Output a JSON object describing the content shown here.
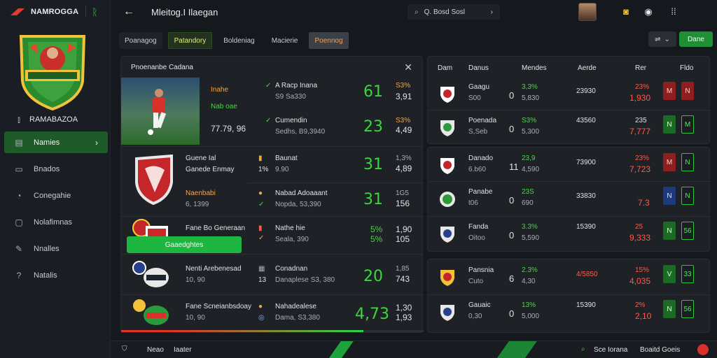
{
  "brand": {
    "name": "NAMROGGA",
    "icon": "leaf-icon"
  },
  "sidebar": {
    "club_name": "RAMABAZOA",
    "items": [
      {
        "label": "Namies",
        "icon": "list-icon",
        "active": true
      },
      {
        "label": "Bnados",
        "icon": "board-icon",
        "active": false
      },
      {
        "label": "Conegahie",
        "icon": "clock-icon",
        "active": false
      },
      {
        "label": "Nolafimnas",
        "icon": "cart-icon",
        "active": false
      },
      {
        "label": "Nnalles",
        "icon": "tool-icon",
        "active": false
      },
      {
        "label": "Natalis",
        "icon": "help-icon",
        "active": false
      }
    ]
  },
  "topbar": {
    "title": "Mleitog.I Ilaegan",
    "search_text": "Q. Bosd Sosl",
    "icons": [
      "gold-icon",
      "chat-icon",
      "grid-icon"
    ]
  },
  "tabs": [
    {
      "label": "Poanagog"
    },
    {
      "label": "Patandory",
      "active": true
    },
    {
      "label": "Boldeniag"
    },
    {
      "label": "Macierie"
    },
    {
      "label": "Poennog",
      "highlight": true
    }
  ],
  "controls": {
    "filter_symbol": "⇌",
    "primary": "Dane"
  },
  "left_panel": {
    "title": "Pnoenanbe Cadana",
    "featured": {
      "a1": "Inahe",
      "a2": "Nab oae",
      "price": "77.79, 96",
      "r1a": "A Racp Inana",
      "r1b": "S9 Sa330",
      "r1big": "61",
      "r1c": "S3%",
      "r1d": "3,91",
      "r2a": "Cumendin",
      "r2b": "Sedhs, B9,3940",
      "r2big": "23",
      "r2c": "S3%",
      "r2d": "4,49"
    },
    "rows": [
      {
        "name": "Guene Ial",
        "sub": "Ganede Enmay",
        "code": "1%",
        "t1": "Baunat",
        "t2": "9.90",
        "big": "31",
        "c1": "1,3%",
        "c2": "4,89"
      },
      {
        "name": "Naenbabi",
        "sub": "6, 1399",
        "code": "",
        "t1": "Nabad Adoaaant",
        "t2": "Nopda, 53,390",
        "big": "31",
        "c1": "1G5",
        "c2": "156"
      },
      {
        "name": "Fane Bo Generaan",
        "sub": "",
        "code": "",
        "t1": "Nathe hie",
        "t2": "Seala, 390",
        "big": "",
        "c1": "5%",
        "c2": "1,90",
        "c3": "5%",
        "c4": "105"
      },
      {
        "name": "Nenti Arebenesad",
        "sub": "10, 90",
        "code": "13",
        "t1": "Conadnan",
        "t2": "Danaplese S3, 380",
        "big": "20",
        "c1": "1,85",
        "c2": "743"
      },
      {
        "name": "Fane Scneianbsdoay",
        "sub": "10, 90",
        "code": "",
        "t1": "Nahadealese",
        "t2": "Dama, S3,380",
        "big": "4,73",
        "c1": "1,30",
        "c2": "1,93"
      }
    ],
    "cta": "Gaaedghtes"
  },
  "table": {
    "headers": [
      "Dam",
      "Danus",
      "Mendes",
      "Aerde",
      "Rer",
      "Fldo"
    ],
    "rows": [
      {
        "n1": "Gaagu",
        "n2": "S00",
        "s": "0",
        "m1": "3,3%",
        "m2": "5,830",
        "a": "23930",
        "p1": "23%",
        "p2": "1,930",
        "b1": "r",
        "b2": "r",
        "b1t": "M",
        "b2t": "N"
      },
      {
        "n1": "Poenada",
        "n2": "S,Seb",
        "s": "0",
        "m1": "S3%",
        "m2": "5,300",
        "a": "43560",
        "p1": "235",
        "p2": "7,777",
        "b1": "g",
        "b2": "o",
        "b1t": "N",
        "b2t": "M"
      },
      {
        "n1": "Danado",
        "n2": "6.b60",
        "s": "11",
        "m1": "23,9",
        "m2": "4,590",
        "a": "73900",
        "p1": "23%",
        "p2": "7,723",
        "b1": "r",
        "b2": "o",
        "b1t": "M",
        "b2t": "N"
      },
      {
        "n1": "Panabe",
        "n2": "t06",
        "s": "0",
        "m1": "23S",
        "m2": "690",
        "a": "33830",
        "p1": "",
        "p2": "7.3",
        "b1": "b",
        "b2": "o",
        "b1t": "N",
        "b2t": "N"
      },
      {
        "n1": "Fanda",
        "n2": "Oitoo",
        "s": "0",
        "m1": "3.3%",
        "m2": "5,590",
        "a": "15390",
        "p1": "25",
        "p2": "9,333",
        "b1": "g",
        "b2": "o",
        "b1t": "N",
        "b2t": "56"
      },
      {
        "n1": "Pansnia",
        "n2": "Cuto",
        "s": "6",
        "m1": "2.3%",
        "m2": "4,30",
        "a": "4/5850",
        "p1": "15%",
        "p2": "4,035",
        "b1": "g",
        "b2": "o",
        "b1t": "V",
        "b2t": "33"
      },
      {
        "n1": "Gauaic",
        "n2": "0,30",
        "s": "0",
        "m1": "13%",
        "m2": "5,000",
        "a": "15390",
        "p1": "2%",
        "p2": "2,10",
        "b1": "g",
        "b2": "o",
        "b1t": "N",
        "b2t": "56"
      }
    ]
  },
  "bottombar": {
    "label": "Neao",
    "label2": "Iaater",
    "right": "Sce Iorana",
    "right2": "Boaitd Goeis"
  }
}
